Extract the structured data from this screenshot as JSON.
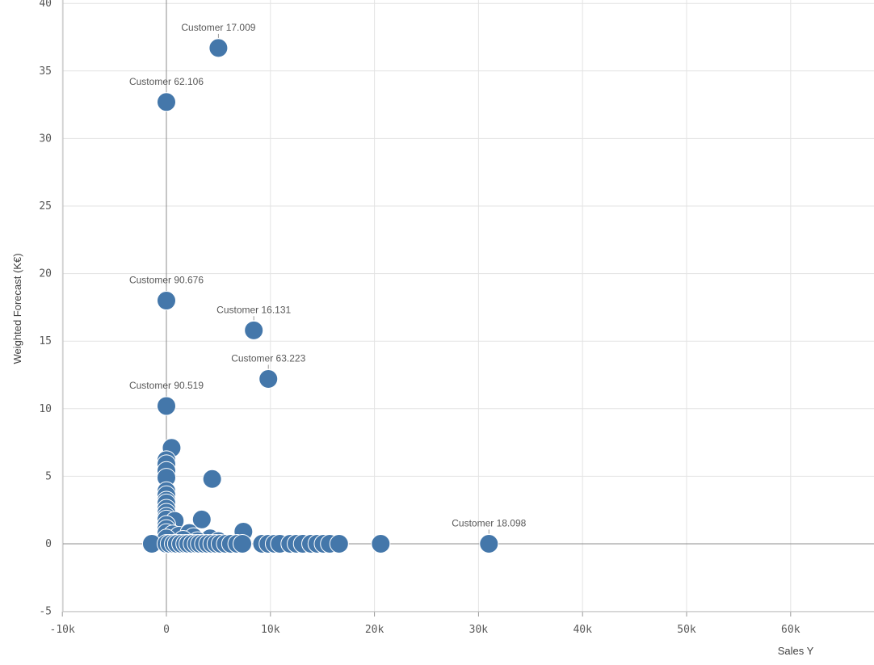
{
  "chart_data": {
    "type": "scatter",
    "xlabel": "Sales Y",
    "ylabel": "Weighted Forecast (K€)",
    "xlim": [
      -10000,
      68000
    ],
    "ylim": [
      -5,
      40
    ],
    "x_ticks": [
      {
        "value": -10000,
        "label": "-10k"
      },
      {
        "value": 0,
        "label": "0"
      },
      {
        "value": 10000,
        "label": "10k"
      },
      {
        "value": 20000,
        "label": "20k"
      },
      {
        "value": 30000,
        "label": "30k"
      },
      {
        "value": 40000,
        "label": "40k"
      },
      {
        "value": 50000,
        "label": "50k"
      },
      {
        "value": 60000,
        "label": "60k"
      }
    ],
    "y_ticks": [
      {
        "value": -5,
        "label": "-5"
      },
      {
        "value": 0,
        "label": "0"
      },
      {
        "value": 5,
        "label": "5"
      },
      {
        "value": 10,
        "label": "10"
      },
      {
        "value": 15,
        "label": "15"
      },
      {
        "value": 20,
        "label": "20"
      },
      {
        "value": 25,
        "label": "25"
      },
      {
        "value": 30,
        "label": "30"
      },
      {
        "value": 35,
        "label": "35"
      },
      {
        "value": 40,
        "label": "40"
      }
    ],
    "grid": true,
    "point_color": "#4477aa",
    "labeled_points": [
      {
        "name": "Customer 17.009",
        "x": 5000,
        "y": 36.7
      },
      {
        "name": "Customer 62.106",
        "x": 0,
        "y": 32.7
      },
      {
        "name": "Customer 90.676",
        "x": 0,
        "y": 18.0
      },
      {
        "name": "Customer 16.131",
        "x": 8400,
        "y": 15.8
      },
      {
        "name": "Customer 63.223",
        "x": 9800,
        "y": 12.2
      },
      {
        "name": "Customer 90.519",
        "x": 0,
        "y": 10.2
      },
      {
        "name": "Customer 18.098",
        "x": 31000,
        "y": 0
      }
    ],
    "points": [
      {
        "x": 500,
        "y": 7.1
      },
      {
        "x": 0,
        "y": 6.2
      },
      {
        "x": 0,
        "y": 5.9
      },
      {
        "x": 0,
        "y": 5.4
      },
      {
        "x": 0,
        "y": 4.9
      },
      {
        "x": 4400,
        "y": 4.8
      },
      {
        "x": 0,
        "y": 3.9
      },
      {
        "x": 0,
        "y": 3.6
      },
      {
        "x": 0,
        "y": 3.2
      },
      {
        "x": 0,
        "y": 3.0
      },
      {
        "x": 0,
        "y": 2.6
      },
      {
        "x": 0,
        "y": 2.3
      },
      {
        "x": 0,
        "y": 2.0
      },
      {
        "x": 0,
        "y": 1.8
      },
      {
        "x": 800,
        "y": 1.7
      },
      {
        "x": 3400,
        "y": 1.8
      },
      {
        "x": 0,
        "y": 1.4
      },
      {
        "x": 0,
        "y": 1.1
      },
      {
        "x": 0,
        "y": 0.8
      },
      {
        "x": 7400,
        "y": 0.9
      },
      {
        "x": 600,
        "y": 0.7
      },
      {
        "x": 1200,
        "y": 0.6
      },
      {
        "x": 2200,
        "y": 0.8
      },
      {
        "x": 4200,
        "y": 0.4
      },
      {
        "x": 2600,
        "y": 0.5
      },
      {
        "x": 0,
        "y": 0.4
      },
      {
        "x": 1600,
        "y": 0.3
      },
      {
        "x": 3000,
        "y": 0.2
      },
      {
        "x": 5000,
        "y": 0.2
      },
      {
        "x": -1400,
        "y": 0
      },
      {
        "x": 0,
        "y": 0
      },
      {
        "x": 300,
        "y": 0
      },
      {
        "x": 700,
        "y": 0
      },
      {
        "x": 1000,
        "y": 0
      },
      {
        "x": 1400,
        "y": 0
      },
      {
        "x": 1800,
        "y": 0
      },
      {
        "x": 2100,
        "y": 0
      },
      {
        "x": 2500,
        "y": 0
      },
      {
        "x": 2900,
        "y": 0
      },
      {
        "x": 3200,
        "y": 0
      },
      {
        "x": 3600,
        "y": 0
      },
      {
        "x": 4000,
        "y": 0
      },
      {
        "x": 4400,
        "y": 0
      },
      {
        "x": 4800,
        "y": 0
      },
      {
        "x": 5200,
        "y": 0
      },
      {
        "x": 5700,
        "y": 0
      },
      {
        "x": 6200,
        "y": 0
      },
      {
        "x": 6800,
        "y": 0
      },
      {
        "x": 7300,
        "y": 0
      },
      {
        "x": 9200,
        "y": 0
      },
      {
        "x": 9800,
        "y": 0
      },
      {
        "x": 10400,
        "y": 0
      },
      {
        "x": 10900,
        "y": 0
      },
      {
        "x": 11900,
        "y": 0
      },
      {
        "x": 12500,
        "y": 0
      },
      {
        "x": 13100,
        "y": 0
      },
      {
        "x": 13900,
        "y": 0
      },
      {
        "x": 14500,
        "y": 0
      },
      {
        "x": 15100,
        "y": 0
      },
      {
        "x": 15700,
        "y": 0
      },
      {
        "x": 16600,
        "y": 0
      },
      {
        "x": 20600,
        "y": 0
      }
    ]
  }
}
